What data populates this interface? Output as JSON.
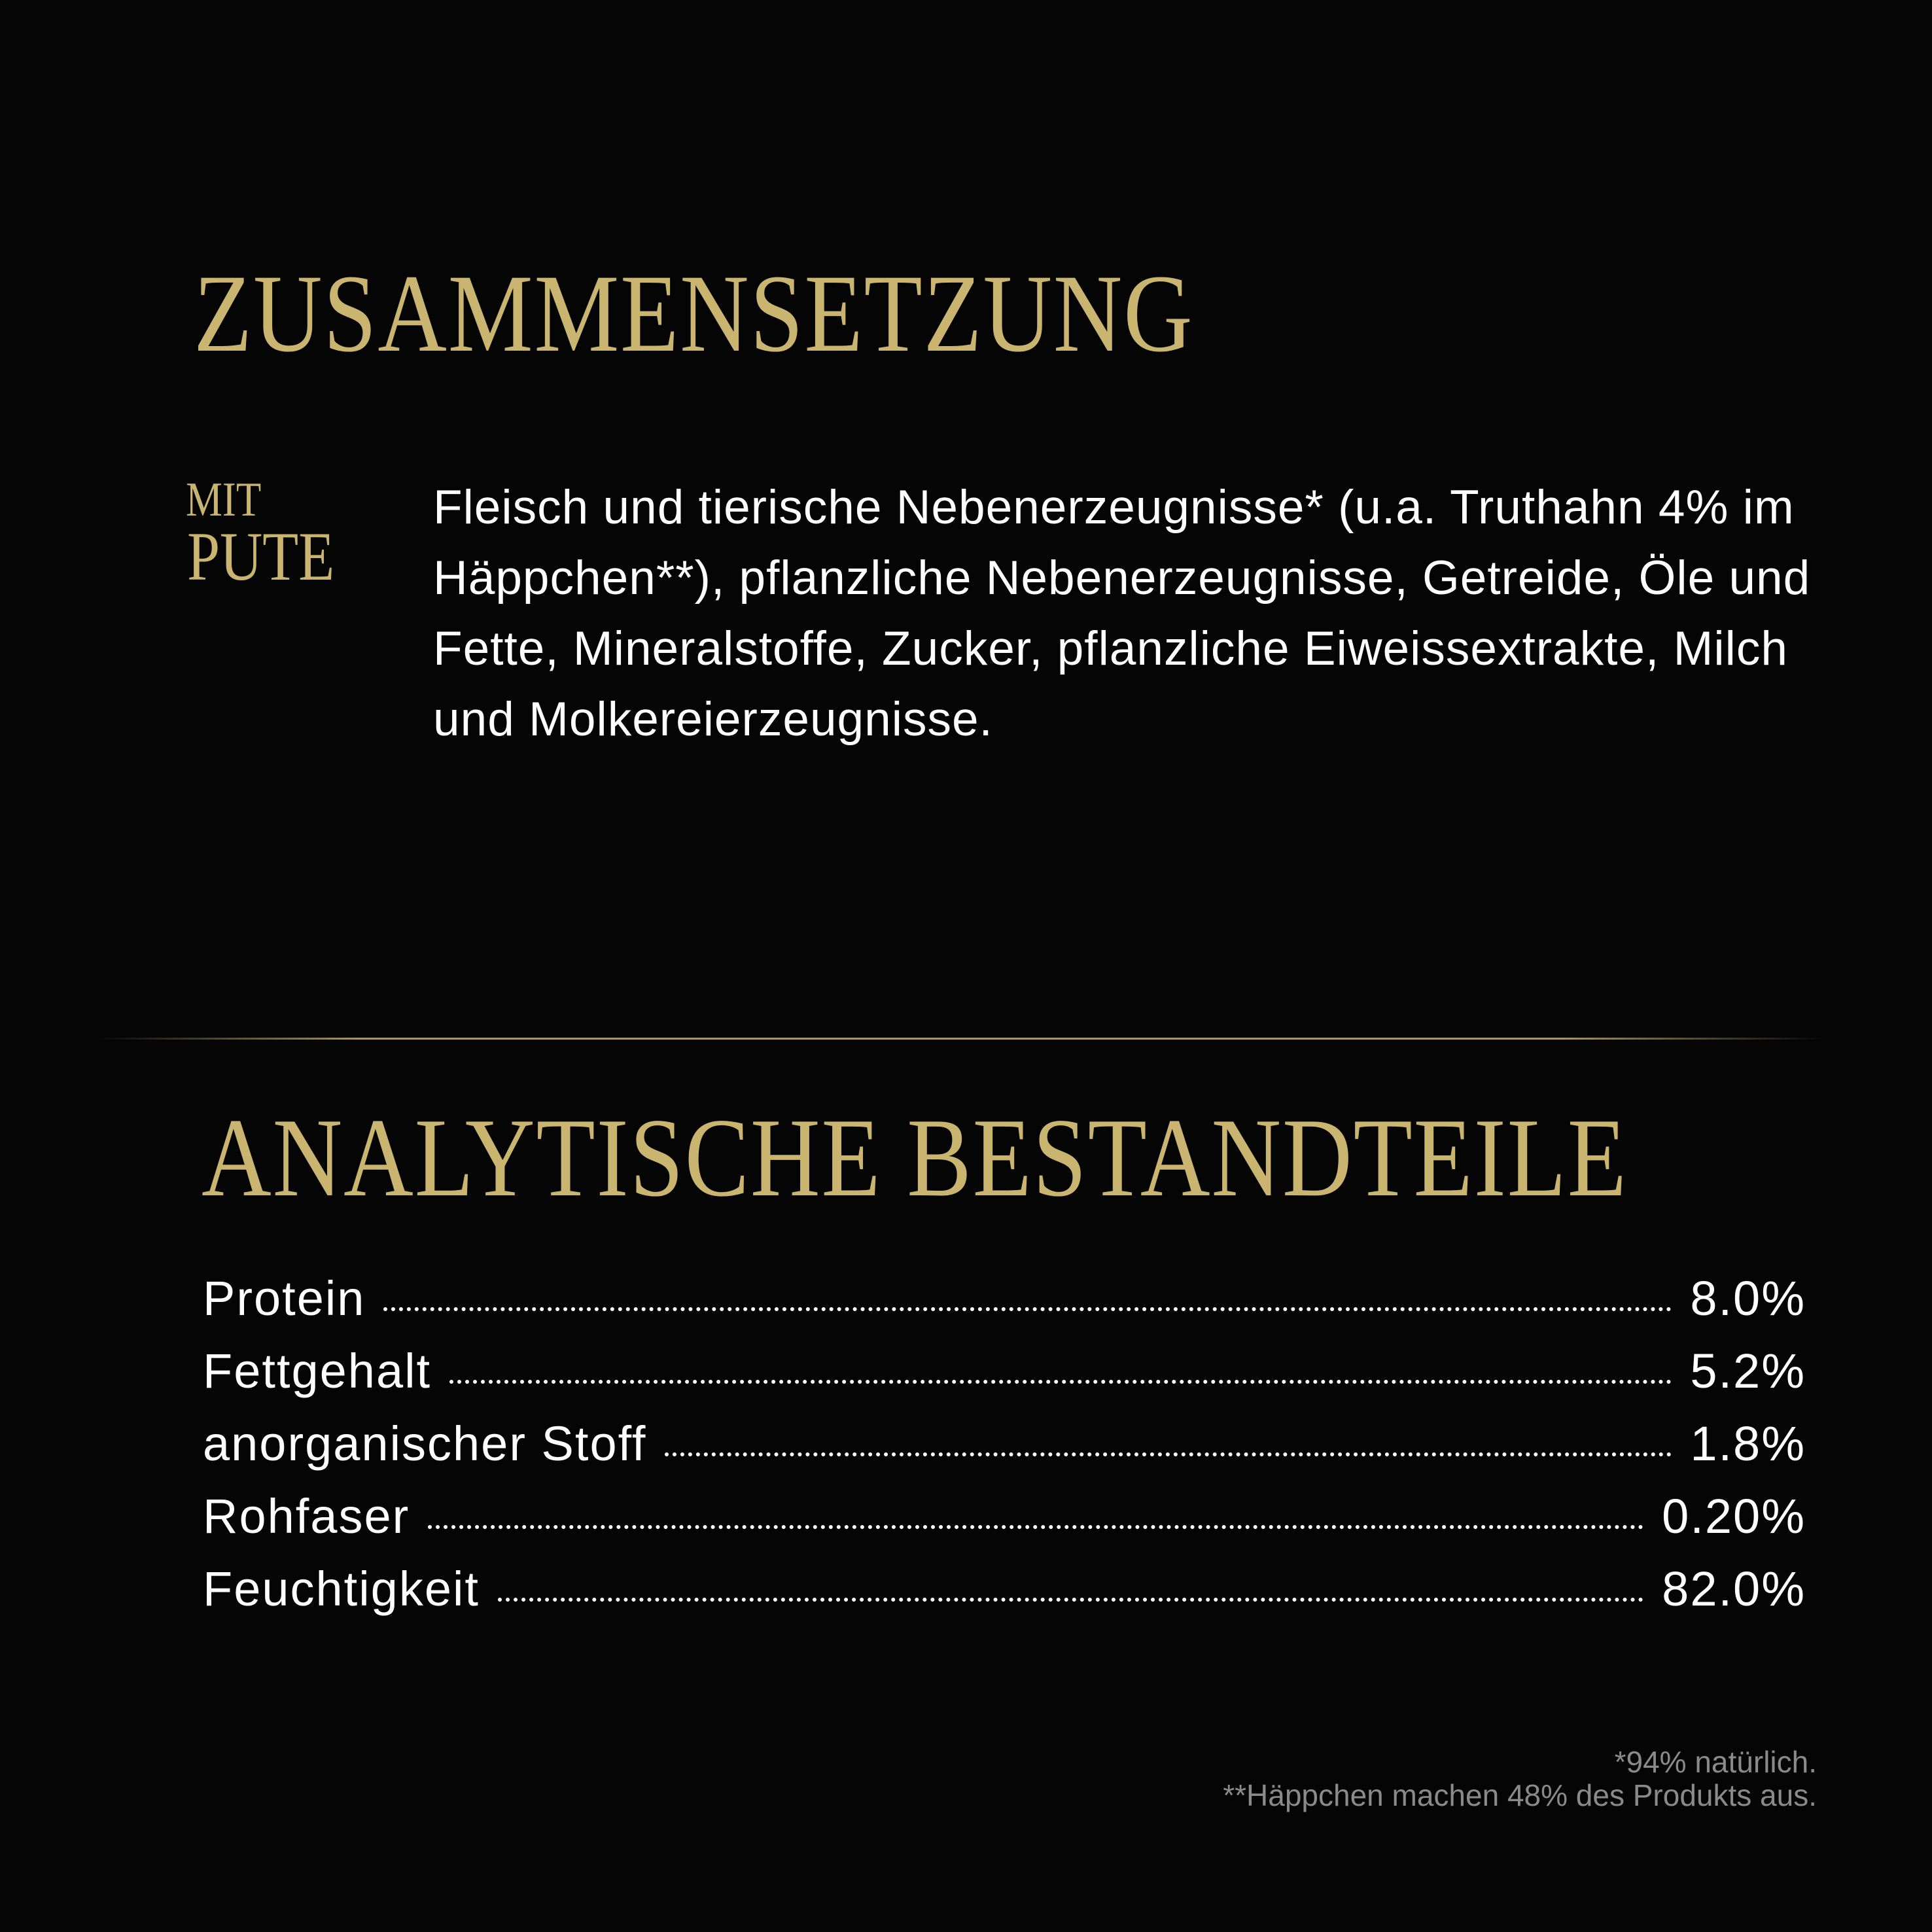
{
  "colors": {
    "background": "#050505",
    "gold": "#c9b470",
    "text": "#ffffff",
    "footnote": "#8a8a8a"
  },
  "composition": {
    "title": "ZUSAMMENSETZUNG",
    "variant_prefix": "MIT",
    "variant_name": "PUTE",
    "ingredients": "Fleisch und tierische Nebenerzeugnisse* (u.a. Truthahn 4% im Häppchen**), pflanzliche Nebenerzeugnisse, Getreide, Öle und Fette, Mineralstoffe, Zucker, pflanzliche Eiweissextrakte, Milch und Molkereierzeugnisse."
  },
  "analysis": {
    "title": "ANALYTISCHE BESTANDTEILE",
    "rows": [
      {
        "label": "Protein",
        "value": "8.0%"
      },
      {
        "label": "Fettgehalt",
        "value": "5.2%"
      },
      {
        "label": "anorganischer Stoff",
        "value": "1.8%"
      },
      {
        "label": "Rohfaser",
        "value": "0.20%"
      },
      {
        "label": "Feuchtigkeit",
        "value": "82.0%"
      }
    ]
  },
  "footnotes": [
    "*94% natürlich.",
    "**Häppchen machen 48% des Produkts aus."
  ]
}
